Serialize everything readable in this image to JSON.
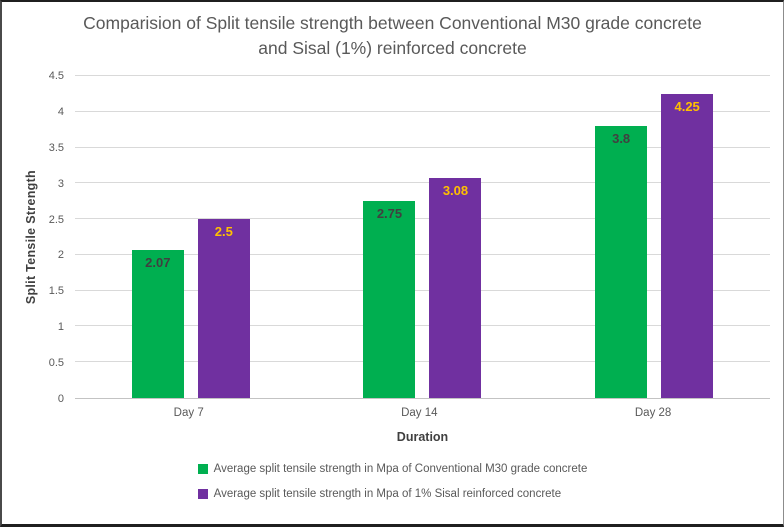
{
  "chart_data": {
    "type": "bar",
    "title": "Comparision of Split tensile strength between Conventional M30 grade concrete and Sisal (1%) reinforced concrete",
    "xlabel": "Duration",
    "ylabel": "Split Tensile Strength",
    "categories": [
      "Day 7",
      "Day 14",
      "Day 28"
    ],
    "series": [
      {
        "name": "Average split tensile strength in Mpa of Conventional M30 grade concrete",
        "color": "#00AF50",
        "label_color": "#404040",
        "values": [
          2.07,
          2.75,
          3.8
        ]
      },
      {
        "name": "Average split tensile strength in Mpa of 1% Sisal reinforced concrete",
        "color": "#7030A0",
        "label_color": "#FFC000",
        "values": [
          2.5,
          3.08,
          4.25
        ]
      }
    ],
    "ylim": [
      0,
      4.5
    ],
    "ytick_step": 0.5,
    "yticks": [
      "0",
      "0.5",
      "1",
      "1.5",
      "2",
      "2.5",
      "3",
      "3.5",
      "4",
      "4.5"
    ],
    "grid": true,
    "gridline_color": "#D9D9D9",
    "legend_position": "bottom",
    "title_color": "#595959",
    "axis_title_color": "#404040",
    "tick_color": "#595959",
    "background_color": "#FFFFFF"
  }
}
